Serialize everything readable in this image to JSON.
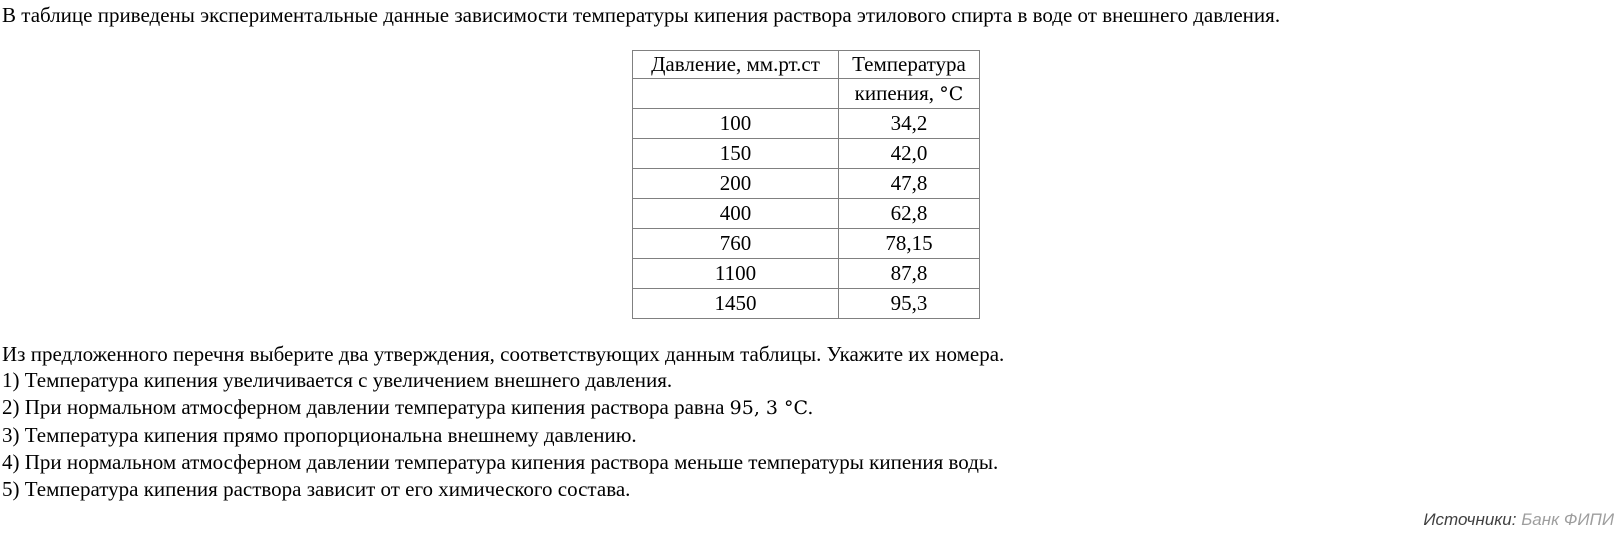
{
  "page": {
    "intro": "В таблице приведены экспериментальные данные зависимости температуры кипения раствора этилового спирта в воде от внешнего давления.",
    "question": "Из предложенного перечня выберите два утверждения, соответствующих данным таблицы. Укажите их номера.",
    "source": {
      "label": "Источники:",
      "value": "Банк ФИПИ"
    }
  },
  "table": {
    "header": {
      "pressure": "Давление, мм.рт.ст",
      "temp_line1": "Температура",
      "temp_line2_text": "кипения, ",
      "temp_line2_math": "°C"
    },
    "rows": [
      [
        "100",
        "34,2"
      ],
      [
        "150",
        "42,0"
      ],
      [
        "200",
        "47,8"
      ],
      [
        "400",
        "62,8"
      ],
      [
        "760",
        "78,15"
      ],
      [
        "1100",
        "87,8"
      ],
      [
        "1450",
        "95,3"
      ]
    ]
  },
  "options": [
    {
      "text": "1) Температура кипения увеличивается с увеличением внешнего давления."
    },
    {
      "text": "2) При нормальном атмосферном давлении температура кипения раствора равна ",
      "math": "95, 3 °C."
    },
    {
      "text": "3) Температура кипения прямо пропорциональна внешнему давлению."
    },
    {
      "text": "4) При нормальном атмосферном давлении температура кипения раствора меньше температуры кипения воды."
    },
    {
      "text": "5) Температура кипения раствора зависит от его химического состава."
    }
  ],
  "colors": {
    "table_border": "#808080",
    "source_label": "#404040",
    "source_value": "#9e9e9e"
  }
}
